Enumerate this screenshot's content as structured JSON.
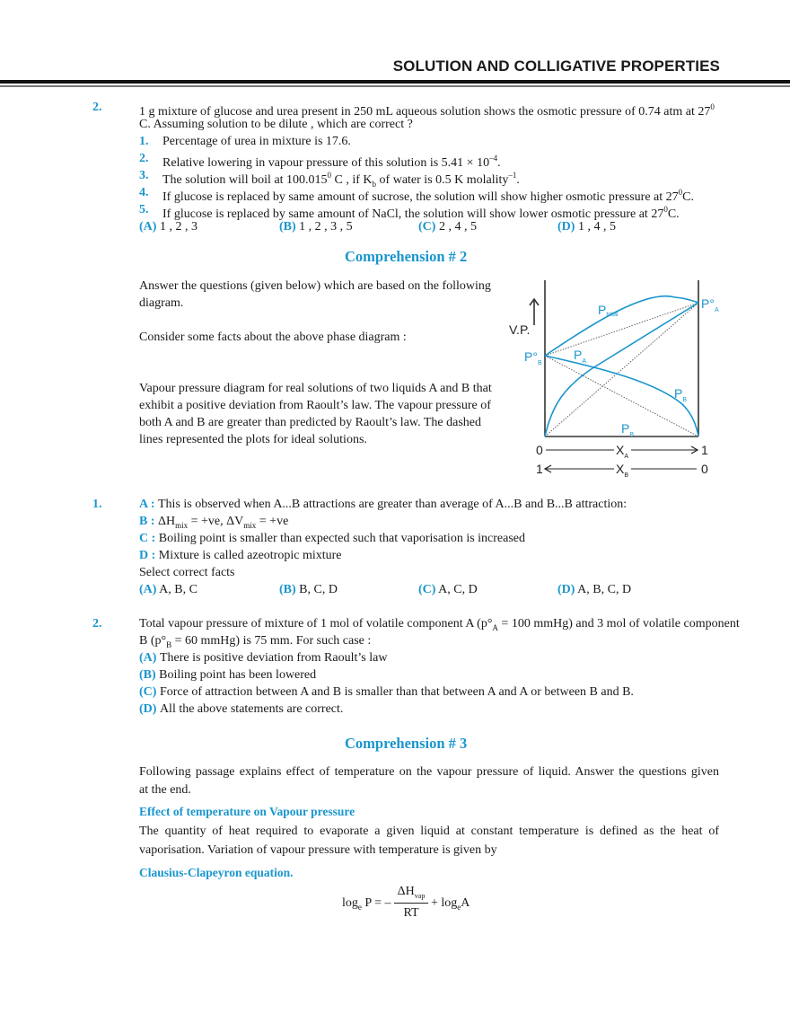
{
  "header": {
    "title": "SOLUTION AND COLLIGATIVE PROPERTIES"
  },
  "colors": {
    "accent": "#1a96cc",
    "text": "#1a1a1a"
  },
  "q_top": {
    "number": "2.",
    "stem1": [
      {
        "t": "1 g mixture of glucose and urea present in 250 mL aqueous solution shows the osmotic pressure of 0.74 atm at 27"
      },
      {
        "t": "0",
        "s": "sup"
      }
    ],
    "stem2": [
      {
        "t": "C. Assuming solution to be dilute , which are correct ?"
      }
    ],
    "items": [
      {
        "n": "1.",
        "text": [
          {
            "t": "Percentage of urea in mixture is 17.6."
          }
        ]
      },
      {
        "n": "2.",
        "text": [
          {
            "t": "Relative lowering in vapour pressure of this solution is 5.41 × 10"
          },
          {
            "t": "–4",
            "s": "sup"
          },
          {
            "t": "."
          }
        ]
      },
      {
        "n": "3.",
        "text": [
          {
            "t": "The solution will boil at 100.015"
          },
          {
            "t": "0",
            "s": "sup"
          },
          {
            "t": " C , if K"
          },
          {
            "t": "b",
            "s": "sub"
          },
          {
            "t": " of water is 0.5 K molality"
          },
          {
            "t": "–1",
            "s": "sup"
          },
          {
            "t": "."
          }
        ]
      },
      {
        "n": "4.",
        "text": [
          {
            "t": "If glucose is replaced by same amount of sucrose, the solution will show higher osmotic pressure at 27"
          },
          {
            "t": "0",
            "s": "sup"
          },
          {
            "t": "C."
          }
        ]
      },
      {
        "n": "5.",
        "text": [
          {
            "t": "If glucose is replaced by same amount of NaCl, the solution will show lower osmotic pressure at 27"
          },
          {
            "t": "0",
            "s": "sup"
          },
          {
            "t": "C."
          }
        ]
      }
    ],
    "options": [
      {
        "label": "(A)",
        "text": "1 , 2 , 3"
      },
      {
        "label": "(B)",
        "text": "1 , 2 , 3 , 5"
      },
      {
        "label": "(C)",
        "text": "2 , 4 , 5"
      },
      {
        "label": "(D)",
        "text": "1 , 4 , 5"
      }
    ]
  },
  "comp2": {
    "heading": "Comprehension # 2",
    "intro1": "Answer  the questions (given below) which are based on the following",
    "intro2": "diagram.",
    "consider": "Consider some facts about the above phase diagram :",
    "desc": [
      "Vapour pressure diagram for real solutions of two liquids A and B that",
      "exhibit a positive deviation from Raoult’s law. The vapour pressure of",
      "both A and B are greater than predicted by Raoult’s law. The dashed",
      "lines represented the plots for ideal solutions."
    ],
    "diagram": {
      "y_label": "V.P.",
      "p_total": "P",
      "p_total_sub": "total",
      "p0a": "P°",
      "p0a_sub": "A",
      "p0b": "P°",
      "p0b_sub": "B",
      "pa": "P",
      "pa_sub": "A",
      "pb1": "P",
      "pb1_sub": "B",
      "pb2": "P",
      "pb2_sub": "B",
      "xa_axis": {
        "start": "0",
        "label": "X",
        "sub": "A",
        "end": "1"
      },
      "xb_axis": {
        "start": "1",
        "label": "X",
        "sub": "B",
        "end": "0"
      }
    },
    "q1": {
      "number": "1.",
      "lines": [
        [
          {
            "t": "A : ",
            "s": "blue"
          },
          {
            "t": "This is observed when A...B attractions are greater than average of A...B and B...B attraction:"
          }
        ],
        [
          {
            "t": "B : ",
            "s": "blue"
          },
          {
            "t": "ΔH"
          },
          {
            "t": "mix",
            "s": "sub"
          },
          {
            "t": " = +ve, ΔV"
          },
          {
            "t": "mix",
            "s": "sub"
          },
          {
            "t": " = +ve"
          }
        ],
        [
          {
            "t": "C : ",
            "s": "blue"
          },
          {
            "t": "Boiling point is smaller than expected such that vaporisation is increased"
          }
        ],
        [
          {
            "t": "D : ",
            "s": "blue"
          },
          {
            "t": "Mixture is called azeotropic mixture"
          }
        ],
        [
          {
            "t": "Select correct facts"
          }
        ]
      ],
      "options": [
        {
          "label": "(A)",
          "text": "A, B, C"
        },
        {
          "label": "(B)",
          "text": "B, C, D"
        },
        {
          "label": "(C)",
          "text": "A, C, D"
        },
        {
          "label": "(D)",
          "text": "A, B, C, D"
        }
      ]
    },
    "q2": {
      "number": "2.",
      "lines": [
        [
          {
            "t": "Total vapour pressure of mixture of 1 mol of volatile component A (p°"
          },
          {
            "t": "A",
            "s": "sub"
          },
          {
            "t": " = 100 mmHg) and 3 mol of volatile component"
          }
        ],
        [
          {
            "t": "B (p°"
          },
          {
            "t": "B",
            "s": "sub"
          },
          {
            "t": " = 60 mmHg) is 75 mm. For such case :"
          }
        ],
        [
          {
            "t": "(A) ",
            "s": "blue"
          },
          {
            "t": "There is positive deviation from Raoult’s law"
          }
        ],
        [
          {
            "t": "(B) ",
            "s": "blue"
          },
          {
            "t": "Boiling point has been lowered"
          }
        ],
        [
          {
            "t": "(C) ",
            "s": "blue"
          },
          {
            "t": "Force of attraction between A and B is smaller than that between A and A or between B and B."
          }
        ],
        [
          {
            "t": "(D) ",
            "s": "blue"
          },
          {
            "t": "All the above statements are correct."
          }
        ]
      ]
    }
  },
  "comp3": {
    "heading": "Comprehension # 3",
    "para1a": "Following passage explains effect of temperature on the vapour pressure of liquid. Answer the questions given",
    "para1b": "at  the  end.",
    "subheading": "Effect of temperature on Vapour pressure",
    "para2a": "The quantity of heat required to evaporate a given liquid at constant temperature is defined as the heat of",
    "para2b": "vaporisation.  Variation  of  vapour  pressure  with  temperature  is  given  by",
    "equation_title": "Clausius-Clapeyron equation.",
    "equation": {
      "lhs": "log",
      "lhs_sub": "e",
      "lhs_var": " P = –",
      "num": "ΔH",
      "num_sub": "vap",
      "den": "RT",
      "rhs": "+ log",
      "rhs_sub": "e",
      "rhs_var": "A"
    }
  }
}
